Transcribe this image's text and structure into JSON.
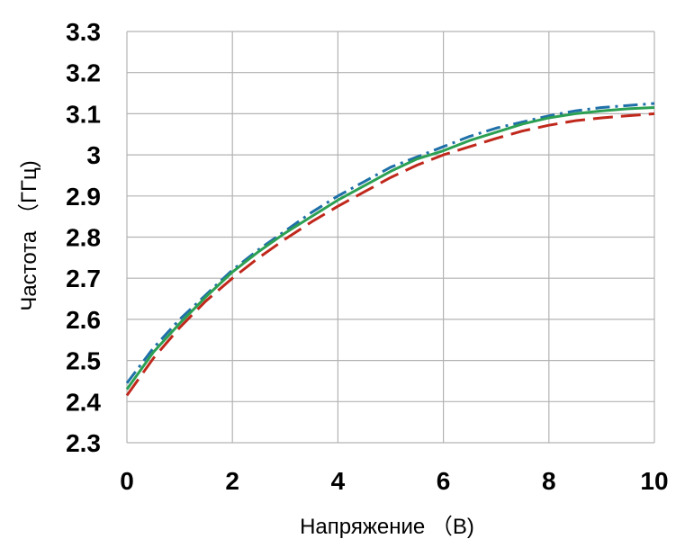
{
  "chart_data": {
    "type": "line",
    "title": "",
    "xlabel": "Напряжение （В)",
    "ylabel": "Частота （ГГц)",
    "xlim": [
      0,
      10
    ],
    "ylim": [
      2.3,
      3.3
    ],
    "x_ticks": [
      0,
      2,
      4,
      6,
      8,
      10
    ],
    "y_ticks": [
      2.3,
      2.4,
      2.5,
      2.6,
      2.7,
      2.8,
      2.9,
      3,
      3.1,
      3.2,
      3.3
    ],
    "x_tick_labels": [
      "0",
      "2",
      "4",
      "6",
      "8",
      "10"
    ],
    "y_tick_labels": [
      "2.3",
      "2.4",
      "2.5",
      "2.6",
      "2.7",
      "2.8",
      "2.9",
      "3",
      "3.1",
      "3.2",
      "3.3"
    ],
    "grid": true,
    "legend": "none",
    "series": [
      {
        "color": "#1f6fa8",
        "dash": "dash-dot",
        "x": [
          0,
          0.5,
          1,
          1.5,
          2,
          2.5,
          3,
          3.5,
          4,
          4.5,
          5,
          5.5,
          6,
          6.5,
          7,
          7.5,
          8,
          8.5,
          9,
          9.5,
          10
        ],
        "y": [
          2.445,
          2.53,
          2.6,
          2.66,
          2.72,
          2.77,
          2.815,
          2.86,
          2.9,
          2.935,
          2.97,
          2.995,
          3.02,
          3.045,
          3.065,
          3.08,
          3.095,
          3.107,
          3.115,
          3.12,
          3.125
        ]
      },
      {
        "color": "#2ca052",
        "dash": "solid",
        "x": [
          0,
          0.5,
          1,
          1.5,
          2,
          2.5,
          3,
          3.5,
          4,
          4.5,
          5,
          5.5,
          6,
          6.5,
          7,
          7.5,
          8,
          8.5,
          9,
          9.5,
          10
        ],
        "y": [
          2.43,
          2.52,
          2.59,
          2.655,
          2.715,
          2.765,
          2.81,
          2.85,
          2.89,
          2.925,
          2.96,
          2.99,
          3.01,
          3.035,
          3.055,
          3.075,
          3.09,
          3.1,
          3.107,
          3.112,
          3.115
        ]
      },
      {
        "color": "#c0281c",
        "dash": "dash",
        "x": [
          0,
          0.5,
          1,
          1.5,
          2,
          2.5,
          3,
          3.5,
          4,
          4.5,
          5,
          5.5,
          6,
          6.5,
          7,
          7.5,
          8,
          8.5,
          9,
          9.5,
          10
        ],
        "y": [
          2.415,
          2.505,
          2.58,
          2.645,
          2.7,
          2.75,
          2.795,
          2.837,
          2.875,
          2.91,
          2.945,
          2.975,
          3.0,
          3.02,
          3.04,
          3.058,
          3.072,
          3.083,
          3.09,
          3.095,
          3.1
        ]
      }
    ]
  },
  "colors": {
    "grid": "#b3b3b3",
    "text": "#000000",
    "background": "#ffffff"
  }
}
